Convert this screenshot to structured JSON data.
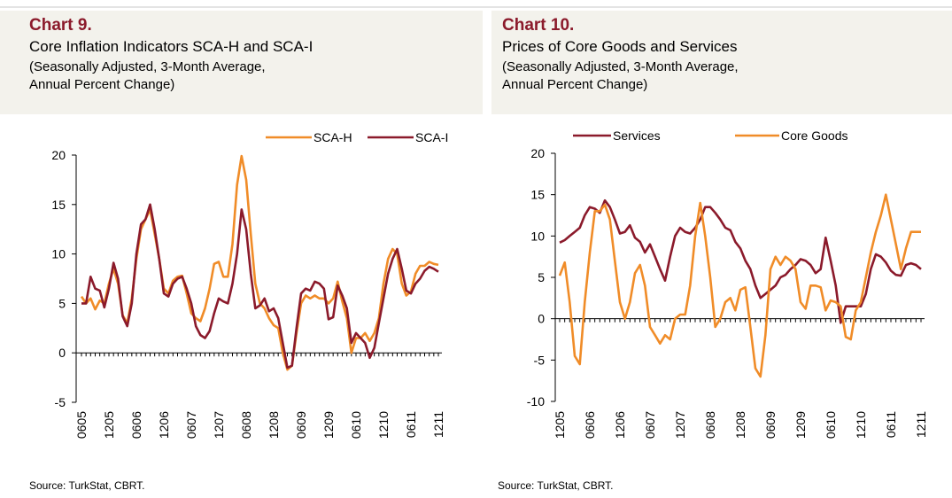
{
  "chart_data": [
    {
      "type": "line",
      "title": "Chart 9.",
      "subtitle": "Core Inflation Indicators SCA-H and SCA-I",
      "subtitle_2": "(Seasonally Adjusted, 3-Month Average,",
      "subtitle_3": "Annual Percent Change)",
      "source": "Source: TurkStat, CBRT.",
      "categories": [
        "0605",
        null,
        null,
        null,
        null,
        null,
        "1205",
        null,
        null,
        null,
        null,
        null,
        "0606",
        null,
        null,
        null,
        null,
        null,
        "1206",
        null,
        null,
        null,
        null,
        null,
        "0607",
        null,
        null,
        null,
        null,
        null,
        "1207",
        null,
        null,
        null,
        null,
        null,
        "0608",
        null,
        null,
        null,
        null,
        null,
        "1208",
        null,
        null,
        null,
        null,
        null,
        "0609",
        null,
        null,
        null,
        null,
        null,
        "1209",
        null,
        null,
        null,
        null,
        null,
        "0610",
        null,
        null,
        null,
        null,
        null,
        "1210",
        null,
        null,
        null,
        null,
        null,
        "0611",
        null,
        null,
        null,
        null,
        null,
        "1211"
      ],
      "ylim": [
        -5,
        20
      ],
      "yticks": [
        -5,
        0,
        5,
        10,
        15,
        20
      ],
      "series": [
        {
          "name": "SCA-H",
          "color": "#f08c28",
          "values": [
            5.7,
            5,
            5.5,
            4.4,
            5.3,
            5,
            7,
            8.5,
            7,
            3.8,
            3,
            5.5,
            9.5,
            12.5,
            13.5,
            14.5,
            12,
            9.5,
            6.5,
            6,
            7.3,
            7.7,
            7.8,
            6,
            4,
            3.5,
            3.2,
            4.5,
            6.5,
            9,
            9.2,
            7.7,
            7.7,
            11,
            17,
            19.9,
            17.5,
            12,
            7,
            5,
            4.5,
            3.5,
            2.8,
            2.5,
            0,
            -1.7,
            -1.3,
            2,
            5,
            5.8,
            5.5,
            5.8,
            5.5,
            5.5,
            5,
            5.5,
            7.2,
            5.2,
            3.5,
            0,
            1.5,
            1.5,
            2,
            1.2,
            2,
            3.5,
            7,
            9.5,
            10.5,
            10,
            7,
            5.8,
            6.2,
            8,
            8.8,
            8.8,
            9.2,
            9,
            8.9
          ]
        },
        {
          "name": "SCA-I",
          "color": "#8b1a2b",
          "values": [
            5,
            5,
            7.7,
            6.5,
            6.3,
            4.6,
            6.5,
            9.1,
            7.5,
            3.7,
            2.7,
            5,
            10,
            13,
            13.5,
            15,
            12.5,
            9.5,
            6,
            5.7,
            7,
            7.5,
            7.7,
            6.5,
            5,
            2.7,
            1.8,
            1.5,
            2.2,
            4,
            5.5,
            5.2,
            5,
            7,
            10,
            14.5,
            12.5,
            8,
            4.5,
            4.8,
            5.5,
            4.2,
            4.5,
            3.5,
            1,
            -1.5,
            -1.3,
            2.5,
            6,
            6.5,
            6.3,
            7.2,
            7,
            6.5,
            3.4,
            3.6,
            6.8,
            5.8,
            4.5,
            1,
            2,
            1.5,
            1,
            -0.5,
            0.5,
            3,
            5.5,
            8,
            9.5,
            10.5,
            8.5,
            6.3,
            6,
            7,
            7.5,
            8.3,
            8.7,
            8.5,
            8.2
          ]
        }
      ]
    },
    {
      "type": "line",
      "title": "Chart 10.",
      "subtitle": "Prices of Core Goods and Services",
      "subtitle_2": "(Seasonally Adjusted, 3-Month Average,",
      "subtitle_3": "Annual Percent Change)",
      "source": "Source: TurkStat, CBRT.",
      "categories": [
        "1205",
        null,
        null,
        null,
        null,
        null,
        "0606",
        null,
        null,
        null,
        null,
        null,
        "1206",
        null,
        null,
        null,
        null,
        null,
        "0607",
        null,
        null,
        null,
        null,
        null,
        "1207",
        null,
        null,
        null,
        null,
        null,
        "0608",
        null,
        null,
        null,
        null,
        null,
        "1208",
        null,
        null,
        null,
        null,
        null,
        "0609",
        null,
        null,
        null,
        null,
        null,
        "1209",
        null,
        null,
        null,
        null,
        null,
        "0610",
        null,
        null,
        null,
        null,
        null,
        "1210",
        null,
        null,
        null,
        null,
        null,
        "0611",
        null,
        null,
        null,
        null,
        null,
        "1211"
      ],
      "ylim": [
        -10,
        20
      ],
      "yticks": [
        -10,
        -5,
        0,
        5,
        10,
        15,
        20
      ],
      "series": [
        {
          "name": "Services",
          "color": "#8b1a2b",
          "values": [
            9.2,
            9.5,
            10,
            10.5,
            11,
            12.5,
            13.5,
            13.3,
            12.8,
            14.3,
            13.5,
            12,
            10.3,
            10.5,
            11.3,
            9.8,
            9.3,
            8,
            9,
            7.5,
            6,
            4.6,
            7.5,
            10,
            11,
            10.5,
            10.3,
            11,
            12,
            13.5,
            13.5,
            12.8,
            12,
            11,
            10.7,
            9.3,
            8.5,
            7,
            6,
            4,
            2.5,
            3,
            3.5,
            4,
            5,
            5.3,
            6,
            6.5,
            7.2,
            7,
            6.5,
            5.5,
            6,
            9.8,
            7,
            4,
            -0.5,
            1.5,
            1.5,
            1.5,
            1.5,
            3,
            6,
            7.8,
            7.5,
            6.8,
            5.8,
            5.3,
            5.2,
            6.5,
            6.7,
            6.5,
            6
          ]
        },
        {
          "name": "Core Goods",
          "color": "#f08c28",
          "values": [
            5.2,
            6.8,
            2,
            -4.5,
            -5.5,
            2,
            8,
            13,
            13,
            13.8,
            12,
            7,
            2,
            0,
            2,
            5.5,
            6.5,
            4,
            -1,
            -2,
            -3,
            -2,
            -2.5,
            0,
            0.5,
            0.5,
            4,
            10,
            14,
            10,
            5,
            -1,
            0,
            2,
            2.5,
            1,
            3.5,
            3.8,
            -1,
            -6,
            -7,
            -2,
            6,
            7.5,
            6.5,
            7.5,
            7,
            6,
            2,
            1.2,
            4,
            4,
            3.8,
            1,
            2.2,
            2,
            1.5,
            -2.2,
            -2.5,
            1,
            2,
            5,
            8,
            10.5,
            12.5,
            15,
            12,
            9,
            6,
            8.5,
            10.5,
            10.5,
            10.5
          ]
        }
      ]
    }
  ]
}
